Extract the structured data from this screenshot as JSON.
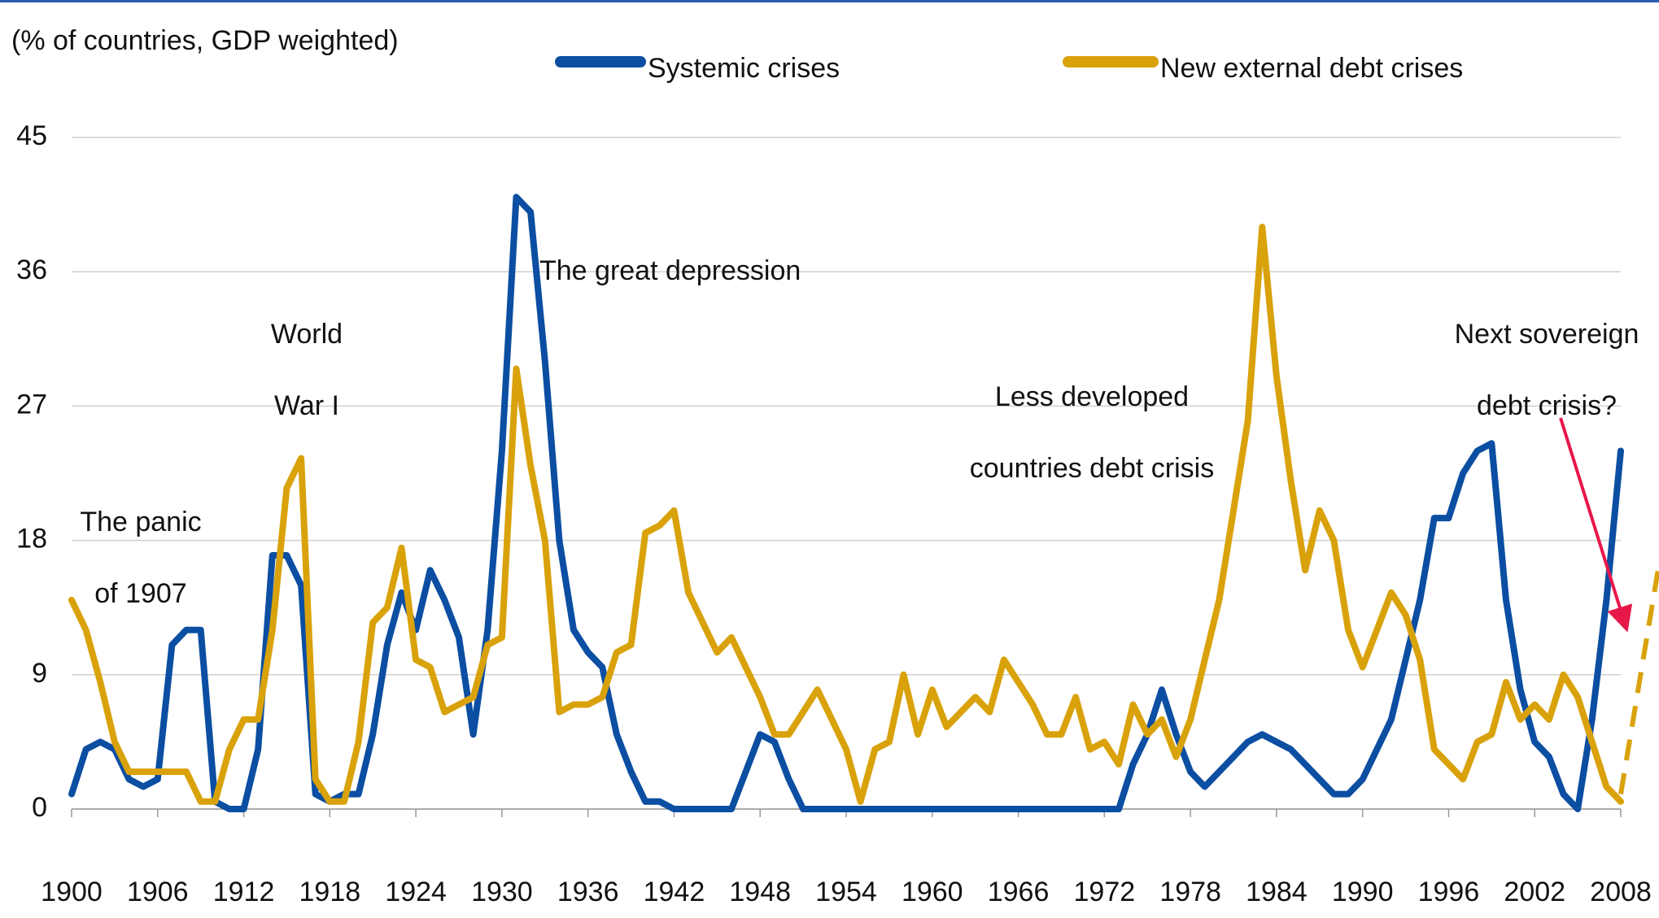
{
  "chart_data": {
    "type": "line",
    "title": "(% of countries, GDP weighted)",
    "x": [
      1900,
      1901,
      1902,
      1903,
      1904,
      1905,
      1906,
      1907,
      1908,
      1909,
      1910,
      1911,
      1912,
      1913,
      1914,
      1915,
      1916,
      1917,
      1918,
      1919,
      1920,
      1921,
      1922,
      1923,
      1924,
      1925,
      1926,
      1927,
      1928,
      1929,
      1930,
      1931,
      1932,
      1933,
      1934,
      1935,
      1936,
      1937,
      1938,
      1939,
      1940,
      1941,
      1942,
      1943,
      1944,
      1945,
      1946,
      1947,
      1948,
      1949,
      1950,
      1951,
      1952,
      1953,
      1954,
      1955,
      1956,
      1957,
      1958,
      1959,
      1960,
      1961,
      1962,
      1963,
      1964,
      1965,
      1966,
      1967,
      1968,
      1969,
      1970,
      1971,
      1972,
      1973,
      1974,
      1975,
      1976,
      1977,
      1978,
      1979,
      1980,
      1981,
      1982,
      1983,
      1984,
      1985,
      1986,
      1987,
      1988,
      1989,
      1990,
      1991,
      1992,
      1993,
      1994,
      1995,
      1996,
      1997,
      1998,
      1999,
      2000,
      2001,
      2002,
      2003,
      2004,
      2005,
      2006,
      2007,
      2008
    ],
    "series": [
      {
        "name": "Systemic crises",
        "color": "#0b4ea2",
        "values": [
          1,
          4,
          4.5,
          4,
          2,
          1.5,
          2,
          11,
          12,
          12,
          0.5,
          0,
          0,
          4,
          17,
          17,
          15,
          1,
          0.5,
          1,
          1,
          5,
          11,
          14.5,
          12,
          16,
          14,
          11.5,
          5,
          12,
          24,
          41,
          40,
          30,
          18,
          12,
          10.5,
          9.5,
          5,
          2.5,
          0.5,
          0.5,
          0,
          0,
          0,
          0,
          0,
          2.5,
          5,
          4.5,
          2,
          0,
          0,
          0,
          0,
          0,
          0,
          0,
          0,
          0,
          0,
          0,
          0,
          0,
          0,
          0,
          0,
          0,
          0,
          0,
          0,
          0,
          0,
          0,
          3,
          5,
          8,
          5,
          2.5,
          1.5,
          2.5,
          3.5,
          4.5,
          5,
          4.5,
          4,
          3,
          2,
          1,
          1,
          2,
          4,
          6,
          10,
          14,
          19.5,
          19.5,
          22.5,
          24,
          24.5,
          14,
          8,
          4.5,
          3.5,
          1,
          0,
          6,
          14,
          24
        ]
      },
      {
        "name": "New external debt crises",
        "color": "#d9a20b",
        "values": [
          14,
          12,
          8.5,
          4.5,
          2.5,
          2.5,
          2.5,
          2.5,
          2.5,
          0.5,
          0.5,
          4,
          6,
          6,
          12,
          21.5,
          23.5,
          2,
          0.5,
          0.5,
          4.5,
          12.5,
          13.5,
          17.5,
          10,
          9.5,
          6.5,
          7,
          7.5,
          11,
          11.5,
          29.5,
          23,
          18,
          6.5,
          7,
          7,
          7.5,
          10.5,
          11,
          18.5,
          19,
          20,
          14.5,
          12.5,
          10.5,
          11.5,
          9.5,
          7.5,
          5,
          5,
          6.5,
          8,
          6,
          4,
          0.5,
          4,
          4.5,
          9,
          5,
          8,
          5.5,
          6.5,
          7.5,
          6.5,
          10,
          8.5,
          7,
          5,
          5,
          7.5,
          4,
          4.5,
          3,
          7,
          5,
          6,
          3.5,
          6,
          10,
          14,
          20,
          26,
          39,
          29,
          22,
          16,
          20,
          18,
          12,
          9.5,
          12,
          14.5,
          13,
          10,
          4,
          3,
          2,
          4.5,
          5,
          8.5,
          6,
          7,
          6,
          9,
          7.5,
          4.5,
          1.5,
          0.5
        ]
      }
    ],
    "projection": {
      "x": [
        2008,
        2010.6
      ],
      "values": [
        1,
        16
      ],
      "color": "#d9a20b",
      "dashed": true
    },
    "annotations": [
      {
        "text": [
          "The panic",
          "of 1907"
        ]
      },
      {
        "text": [
          "World",
          "War I"
        ]
      },
      {
        "text": [
          "The great depression"
        ]
      },
      {
        "text": [
          "Less developed",
          "countries debt crisis"
        ]
      },
      {
        "text": [
          "Next sovereign",
          "debt crisis?"
        ]
      }
    ],
    "arrow_color": "#e8174a",
    "xlim": [
      1900,
      2008
    ],
    "xticks": [
      1900,
      1906,
      1912,
      1918,
      1924,
      1930,
      1936,
      1942,
      1948,
      1954,
      1960,
      1966,
      1972,
      1978,
      1984,
      1990,
      1996,
      2002,
      2008
    ],
    "ylim": [
      0,
      45
    ],
    "yticks": [
      0,
      9,
      18,
      27,
      36,
      45
    ],
    "grid": true
  }
}
